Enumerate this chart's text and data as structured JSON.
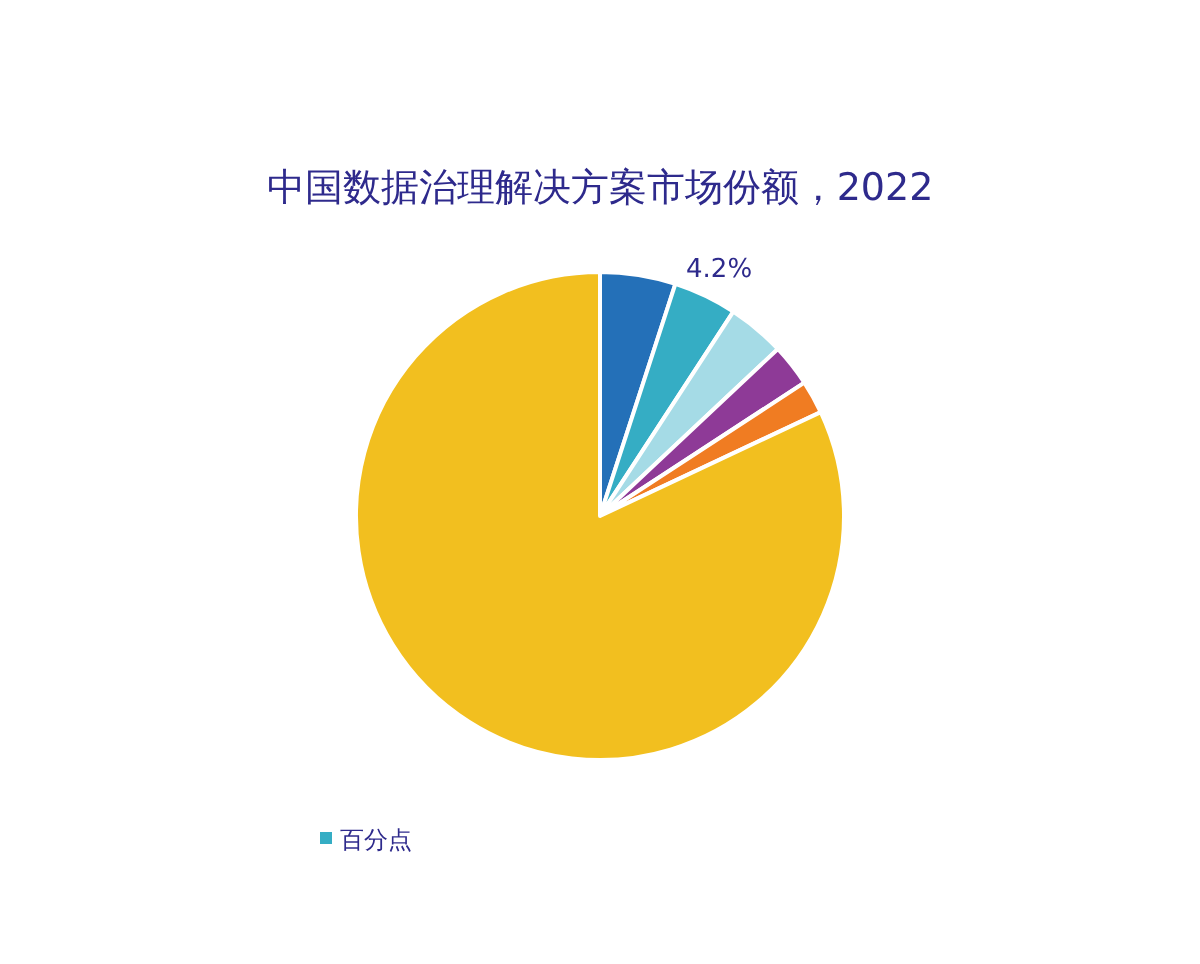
{
  "chart_data": {
    "type": "pie",
    "title": "中国数据治理解决方案市场份额，2022",
    "categories": [
      null,
      null,
      null,
      null,
      null,
      null
    ],
    "series": [
      {
        "name": "百分点",
        "color": "#35adc4",
        "values": [
          5.0,
          4.2,
          3.8,
          2.8,
          2.2,
          82.0
        ],
        "colors": [
          "#2470b8",
          "#35adc4",
          "#a5dbe6",
          "#8e3a97",
          "#f07c22",
          "#f2bf1f"
        ],
        "value_labels": [
          null,
          "4.2%",
          null,
          null,
          null,
          null
        ]
      }
    ],
    "legend": "bottom left"
  }
}
